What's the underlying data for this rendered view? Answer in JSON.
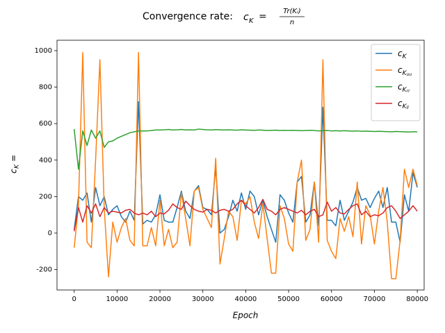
{
  "chart_data": {
    "type": "line",
    "title": "Convergence rate:",
    "formula": {
      "symbol": "c",
      "subscript": "K",
      "relation": "=",
      "numerator": "Tr(Kᵢ)",
      "denominator": "n"
    },
    "ylabel": {
      "symbol": "c",
      "subscript": "K",
      "relation": "="
    },
    "xlabel": "Epoch",
    "x": [
      0,
      1000,
      2000,
      3000,
      4000,
      5000,
      6000,
      7000,
      8000,
      9000,
      10000,
      11000,
      12000,
      13000,
      14000,
      15000,
      16000,
      17000,
      18000,
      19000,
      20000,
      21000,
      22000,
      23000,
      24000,
      25000,
      26000,
      27000,
      28000,
      29000,
      30000,
      31000,
      32000,
      33000,
      34000,
      35000,
      36000,
      37000,
      38000,
      39000,
      40000,
      41000,
      42000,
      43000,
      44000,
      45000,
      46000,
      47000,
      48000,
      49000,
      50000,
      51000,
      52000,
      53000,
      54000,
      55000,
      56000,
      57000,
      58000,
      59000,
      60000,
      61000,
      62000,
      63000,
      64000,
      65000,
      66000,
      67000,
      68000,
      69000,
      70000,
      71000,
      72000,
      73000,
      74000,
      75000,
      76000,
      77000,
      78000,
      79000,
      80000
    ],
    "series": [
      {
        "name": "c",
        "subscript": "K",
        "color": "#1f77b4",
        "values": [
          20,
          200,
          180,
          220,
          60,
          250,
          150,
          200,
          100,
          130,
          150,
          90,
          60,
          120,
          70,
          720,
          50,
          70,
          60,
          100,
          210,
          70,
          60,
          60,
          140,
          230,
          120,
          80,
          230,
          260,
          140,
          130,
          100,
          360,
          0,
          20,
          90,
          180,
          120,
          220,
          130,
          230,
          200,
          100,
          180,
          90,
          20,
          -50,
          210,
          180,
          110,
          60,
          280,
          310,
          60,
          100,
          280,
          40,
          690,
          70,
          70,
          40,
          180,
          70,
          120,
          170,
          250,
          180,
          190,
          140,
          190,
          230,
          140,
          250,
          60,
          60,
          -50,
          210,
          120,
          330,
          250
        ]
      },
      {
        "name": "c",
        "subscript": "K",
        "subscript2": "uu",
        "color": "#ff7f0e",
        "values": [
          -80,
          150,
          990,
          -50,
          -80,
          400,
          950,
          140,
          -240,
          60,
          -50,
          30,
          80,
          -40,
          -70,
          990,
          -70,
          -70,
          30,
          -70,
          180,
          -70,
          20,
          -80,
          -50,
          220,
          80,
          -70,
          230,
          250,
          130,
          80,
          30,
          410,
          -170,
          -30,
          120,
          90,
          -40,
          180,
          160,
          200,
          60,
          -30,
          160,
          -30,
          -220,
          -220,
          150,
          80,
          -60,
          -100,
          280,
          400,
          -40,
          20,
          280,
          -50,
          950,
          -40,
          -100,
          -140,
          80,
          10,
          90,
          -20,
          280,
          -60,
          150,
          100,
          -60,
          120,
          250,
          60,
          -250,
          -250,
          -40,
          350,
          250,
          350,
          260
        ]
      },
      {
        "name": "c",
        "subscript": "K",
        "subscript2": "rr",
        "color": "#2ca02c",
        "values": [
          570,
          350,
          560,
          480,
          565,
          520,
          560,
          470,
          500,
          505,
          520,
          530,
          540,
          550,
          555,
          560,
          560,
          560,
          562,
          565,
          565,
          566,
          568,
          565,
          566,
          568,
          565,
          566,
          565,
          570,
          568,
          566,
          565,
          567,
          566,
          565,
          566,
          565,
          564,
          566,
          565,
          564,
          563,
          565,
          564,
          562,
          563,
          564,
          562,
          563,
          562,
          563,
          562,
          561,
          562,
          563,
          562,
          560,
          561,
          562,
          560,
          561,
          560,
          561,
          560,
          559,
          560,
          558,
          559,
          558,
          557,
          558,
          557,
          556,
          555,
          557,
          556,
          555,
          554,
          555,
          555
        ]
      },
      {
        "name": "c",
        "subscript": "K",
        "subscript2": "ll",
        "color": "#d62728",
        "values": [
          10,
          140,
          60,
          150,
          110,
          160,
          90,
          140,
          110,
          120,
          115,
          110,
          125,
          130,
          110,
          100,
          110,
          100,
          120,
          90,
          110,
          105,
          125,
          160,
          140,
          130,
          175,
          150,
          130,
          120,
          115,
          130,
          125,
          110,
          125,
          130,
          120,
          130,
          160,
          180,
          150,
          130,
          110,
          140,
          185,
          130,
          120,
          100,
          130,
          140,
          130,
          120,
          110,
          125,
          100,
          120,
          130,
          90,
          100,
          170,
          120,
          140,
          110,
          105,
          130,
          150,
          160,
          100,
          120,
          90,
          100,
          95,
          110,
          140,
          150,
          120,
          80,
          100,
          120,
          150,
          120
        ]
      }
    ],
    "xlim": [
      -4000,
      81600
    ],
    "ylim": [
      -312,
      1057
    ],
    "xticks": [
      0,
      10000,
      20000,
      30000,
      40000,
      50000,
      60000,
      70000,
      80000
    ],
    "yticks": [
      -200,
      0,
      200,
      400,
      600,
      800,
      1000
    ],
    "grid": false,
    "legend": "upper right"
  }
}
